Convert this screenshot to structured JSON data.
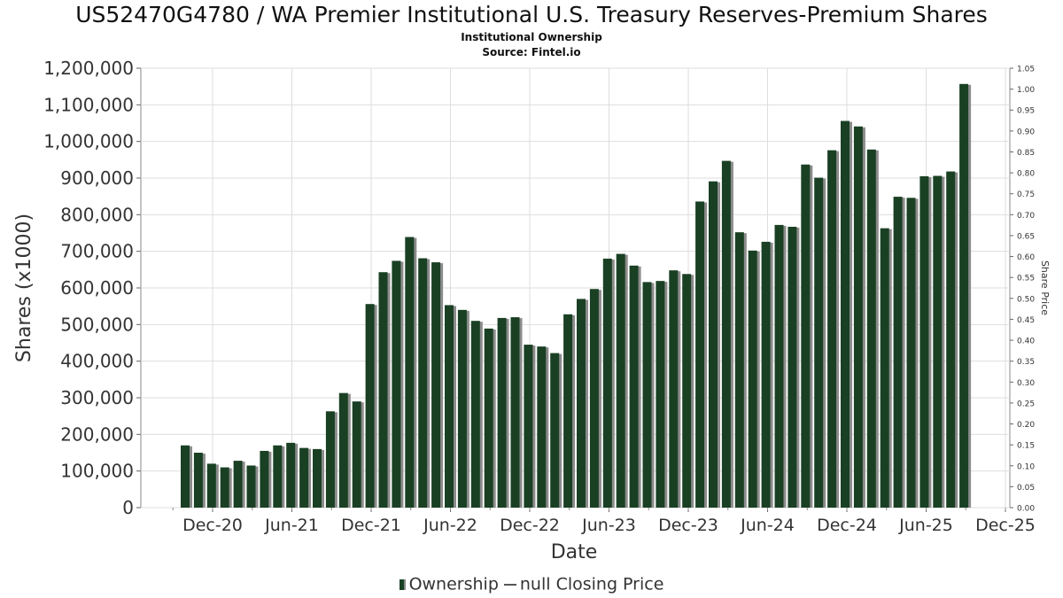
{
  "chart_data": {
    "type": "bar",
    "title": "US52470G4780 / WA Premier Institutional U.S. Treasury Reserves-Premium Shares",
    "subtitle": "Institutional Ownership",
    "source": "Source: Fintel.io",
    "xlabel": "Date",
    "ylabel": "Shares (x1000)",
    "y2label": "Share Price",
    "ylim": [
      0,
      1200000
    ],
    "y2lim": [
      0,
      1.05
    ],
    "yticks": [
      "0",
      "100,000",
      "200,000",
      "300,000",
      "400,000",
      "500,000",
      "600,000",
      "700,000",
      "800,000",
      "900,000",
      "1,000,000",
      "1,100,000",
      "1,200,000"
    ],
    "y2ticks": [
      "0.00",
      "0.05",
      "0.10",
      "0.15",
      "0.20",
      "0.25",
      "0.30",
      "0.35",
      "0.40",
      "0.45",
      "0.50",
      "0.55",
      "0.60",
      "0.65",
      "0.70",
      "0.75",
      "0.80",
      "0.85",
      "0.90",
      "0.95",
      "1.00",
      "1.05"
    ],
    "xticks": [
      "Dec-20",
      "Jun-21",
      "Dec-21",
      "Jun-22",
      "Dec-22",
      "Jun-23",
      "Dec-23",
      "Jun-24",
      "Dec-24",
      "Jun-25",
      "Dec-25"
    ],
    "grid": true,
    "legend_position": "bottom",
    "series": [
      {
        "name": "Ownership",
        "values": [
          170000,
          150000,
          120000,
          110000,
          128000,
          115000,
          155000,
          170000,
          177000,
          163000,
          160000,
          263000,
          313000,
          290000,
          556000,
          643000,
          674000,
          739000,
          681000,
          670000,
          553000,
          540000,
          510000,
          489000,
          518000,
          520000,
          445000,
          440000,
          422000,
          528000,
          570000,
          597000,
          680000,
          693000,
          661000,
          616000,
          619000,
          648000,
          638000,
          836000,
          891000,
          947000,
          752000,
          702000,
          726000,
          772000,
          767000,
          937000,
          901000,
          976000,
          1056000,
          1041000,
          978000,
          763000,
          849000,
          846000,
          905000,
          906000,
          918000,
          1157000
        ]
      },
      {
        "name": "null Closing Price",
        "values": []
      }
    ]
  }
}
